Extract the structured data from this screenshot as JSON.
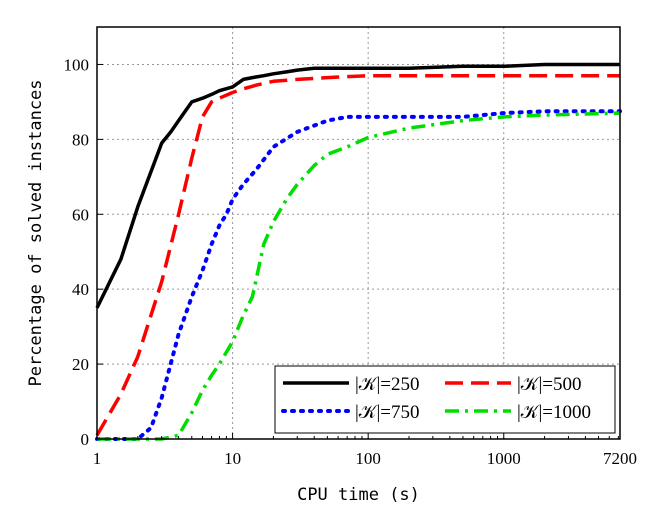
{
  "chart_data": {
    "type": "line",
    "xscale": "log",
    "xlim": [
      1,
      7200
    ],
    "ylim": [
      0,
      110
    ],
    "xticks": [
      {
        "value": 1,
        "label": "1"
      },
      {
        "value": 10,
        "label": "10"
      },
      {
        "value": 100,
        "label": "100"
      },
      {
        "value": 1000,
        "label": "1000"
      },
      {
        "value": 7200,
        "label": "7200"
      }
    ],
    "yticks": [
      {
        "value": 0,
        "label": "0"
      },
      {
        "value": 20,
        "label": "20"
      },
      {
        "value": 40,
        "label": "40"
      },
      {
        "value": 60,
        "label": "60"
      },
      {
        "value": 80,
        "label": "80"
      },
      {
        "value": 100,
        "label": "100"
      }
    ],
    "xlabel": "CPU time (s)",
    "ylabel": "Percentage of solved instances",
    "grid": true,
    "legend_position": "bottom-right",
    "series": [
      {
        "name": "|𝒦|=250",
        "color": "#000000",
        "dash": "solid",
        "x": [
          1,
          1.5,
          2,
          3,
          3.5,
          4,
          5,
          6,
          7,
          8,
          10,
          12,
          14,
          17,
          20,
          25,
          30,
          40,
          60,
          100,
          200,
          500,
          1000,
          2000,
          7200
        ],
        "y": [
          35,
          48,
          62,
          79,
          82,
          85,
          90,
          91,
          92,
          93,
          94,
          96,
          96.5,
          97,
          97.5,
          98,
          98.5,
          99,
          99,
          99,
          99,
          99.5,
          99.5,
          100,
          100
        ]
      },
      {
        "name": "|𝒦|=500",
        "color": "#ff0000",
        "dash": "long-dash",
        "x": [
          1,
          1.5,
          2,
          3,
          4,
          5,
          6,
          7,
          8,
          10,
          12,
          15,
          20,
          30,
          50,
          100,
          200,
          500,
          1000,
          2000,
          7200
        ],
        "y": [
          1,
          12,
          22,
          42,
          60,
          75,
          86,
          90,
          91,
          92.5,
          93.5,
          94.5,
          95.5,
          96,
          96.5,
          97,
          97,
          97,
          97,
          97,
          97
        ]
      },
      {
        "name": "|𝒦|=750",
        "color": "#0000ff",
        "dash": "dotted",
        "x": [
          1,
          1.5,
          2,
          2.5,
          3,
          4,
          5,
          6,
          7,
          8,
          9,
          10,
          12,
          15,
          20,
          30,
          50,
          70,
          100,
          200,
          500,
          1000,
          2000,
          7200
        ],
        "y": [
          0,
          0,
          0,
          3,
          11,
          28,
          38,
          45,
          52,
          57,
          60,
          64,
          68,
          72,
          78,
          82,
          85,
          86,
          86,
          86,
          86,
          87,
          87.5,
          87.5
        ]
      },
      {
        "name": "|𝒦|=1000",
        "color": "#00dd00",
        "dash": "dash-dot",
        "x": [
          1,
          2,
          3,
          4,
          5,
          6,
          7,
          8,
          10,
          12,
          14,
          15,
          17,
          20,
          25,
          30,
          40,
          50,
          70,
          100,
          200,
          500,
          1000,
          2000,
          7200
        ],
        "y": [
          0,
          0,
          0,
          1,
          7,
          13,
          17,
          20,
          26,
          33,
          38,
          43,
          52,
          58,
          64,
          68,
          73,
          76,
          78,
          80.5,
          83,
          85,
          86,
          86.5,
          87
        ]
      }
    ]
  }
}
